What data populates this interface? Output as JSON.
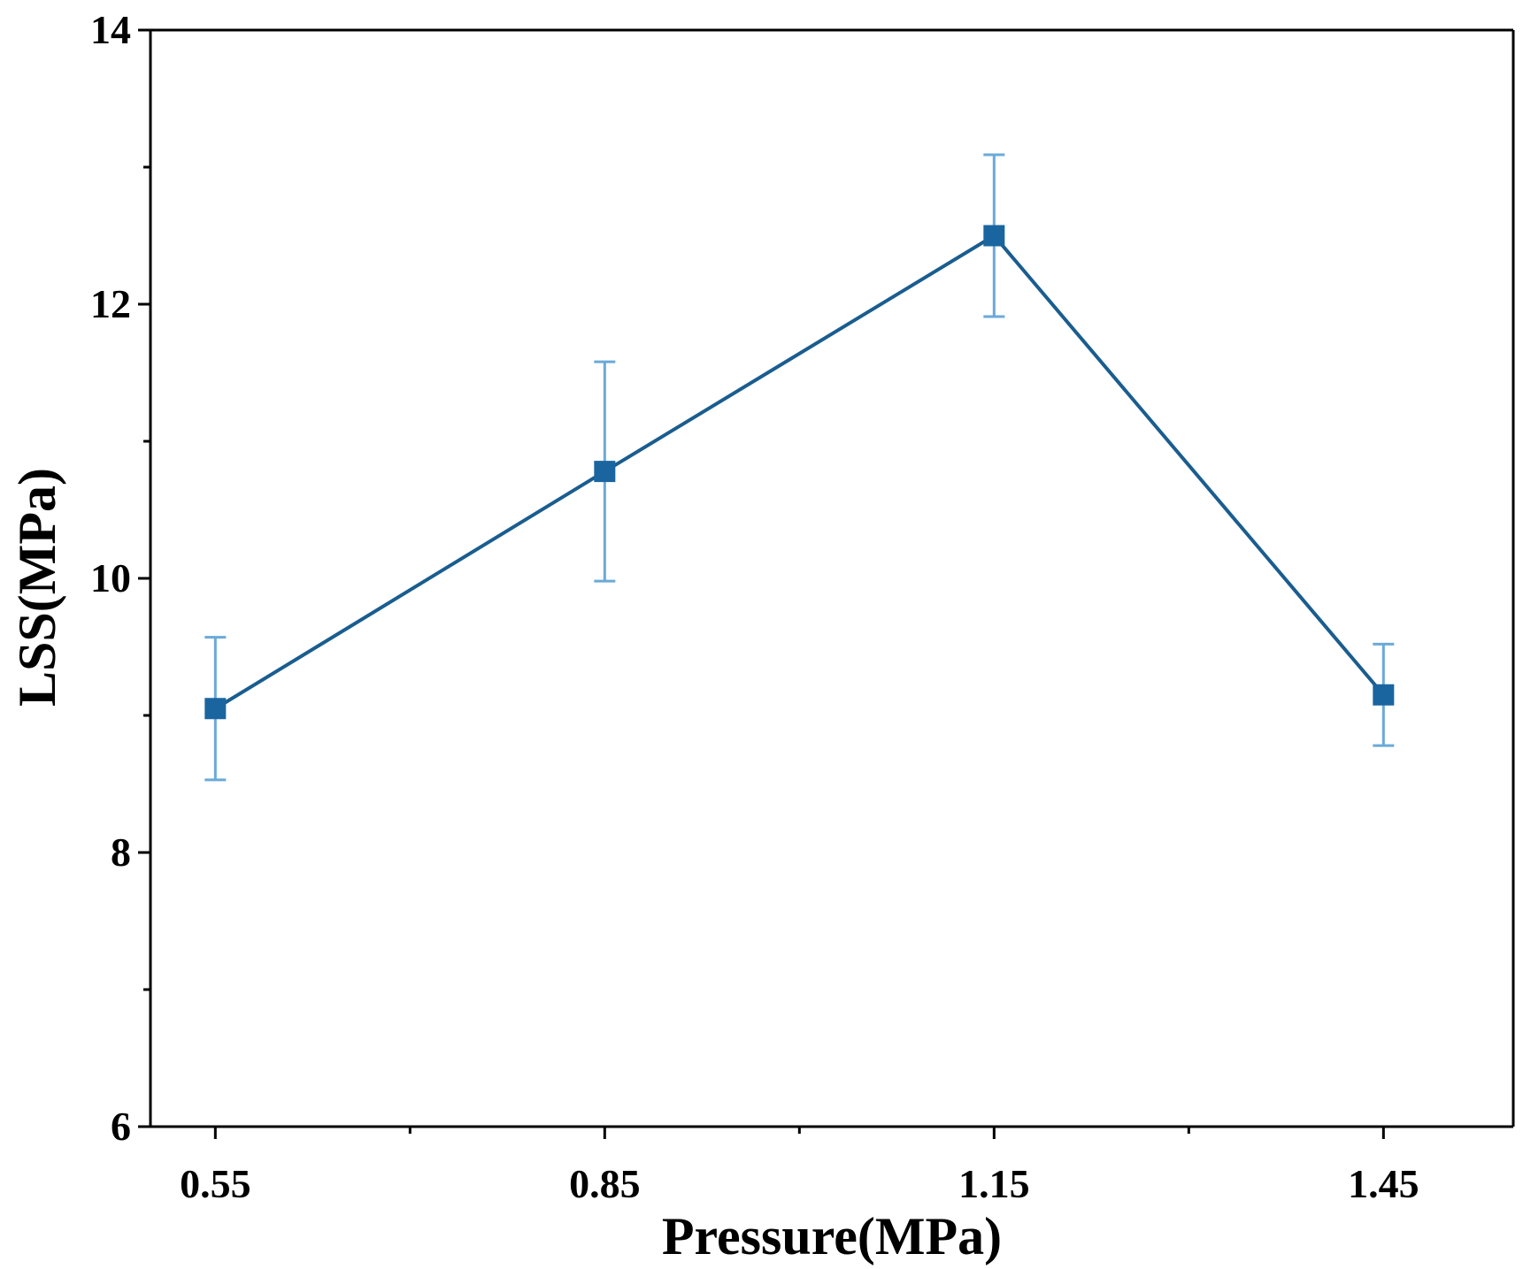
{
  "chart_data": {
    "type": "line",
    "xlabel": "Pressure(MPa)",
    "ylabel": "LSS(MPa)",
    "x_ticks": [
      "0.55",
      "0.85",
      "1.15",
      "1.45"
    ],
    "y_ticks": [
      "6",
      "8",
      "10",
      "12",
      "14"
    ],
    "ylim": [
      6,
      14
    ],
    "xlim": [
      0.5,
      1.55
    ],
    "grid": false,
    "series": [
      {
        "x": [
          0.55,
          0.85,
          1.15,
          1.45
        ],
        "y": [
          9.05,
          10.78,
          12.5,
          9.15
        ],
        "error": [
          0.52,
          0.8,
          0.59,
          0.37
        ],
        "marker": "square"
      }
    ],
    "colors": {
      "line": "#1a5d8f",
      "marker": "#1a65a0",
      "error_bar": "#6aaad8",
      "axis": "#000000"
    }
  }
}
